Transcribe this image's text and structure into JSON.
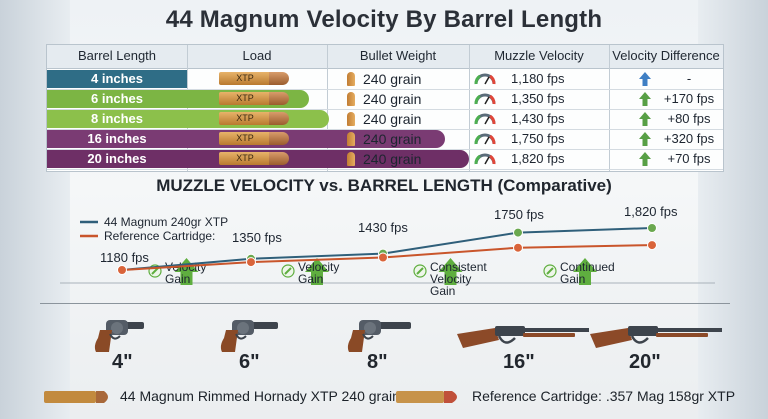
{
  "title": "44 Magnum Velocity By Barrel Length",
  "table": {
    "headers": [
      "Barrel Length",
      "Load",
      "Bullet Weight",
      "Muzzle Velocity",
      "Velocity Difference"
    ],
    "rows": [
      {
        "length": "4 inches",
        "load": "XTP",
        "weight": "240 grain",
        "velocity": "1,180 fps",
        "diff": "-",
        "color": "#2f6d86",
        "arrow": "#3f7fc4"
      },
      {
        "length": "6 inches",
        "load": "XTP",
        "weight": "240 grain",
        "velocity": "1,350 fps",
        "diff": "+170 fps",
        "color": "#7cb544",
        "arrow": "#58a046"
      },
      {
        "length": "8 inches",
        "load": "XTP",
        "weight": "240 grain",
        "velocity": "1,430 fps",
        "diff": "+80 fps",
        "color": "#8cc04b",
        "arrow": "#58a046"
      },
      {
        "length": "16 inches",
        "load": "XTP",
        "weight": "240 grain",
        "velocity": "1,750 fps",
        "diff": "+320 fps",
        "color": "#7a3b73",
        "arrow": "#58a046"
      },
      {
        "length": "20 inches",
        "load": "XTP",
        "weight": "240 grain",
        "velocity": "1,820 fps",
        "diff": "+70 fps",
        "color": "#6e2f66",
        "arrow": "#58a046"
      }
    ]
  },
  "chart_data": {
    "type": "line",
    "title": "MUZZLE VELOCITY vs. BARREL LENGTH (Comparative)",
    "categories": [
      "4\"",
      "6\"",
      "8\"",
      "16\"",
      "20\""
    ],
    "series": [
      {
        "name": "44 Magnum 240gr XTP",
        "color": "#2f5f7a",
        "values": [
          1180,
          1350,
          1430,
          1750,
          1820
        ]
      },
      {
        "name": "Reference Cartridge:",
        "color": "#c9552b",
        "values": [
          1180,
          1300,
          1370,
          1520,
          1560
        ]
      }
    ],
    "point_labels": [
      "1180 fps",
      "1350 fps",
      "1430 fps",
      "1750 fps",
      "1,820 fps"
    ],
    "gain_labels": [
      {
        "after": 0,
        "line1": "Velocity",
        "line2": "Gain",
        "line3": ""
      },
      {
        "after": 1,
        "line1": "Velocity",
        "line2": "Gain",
        "line3": ""
      },
      {
        "after": 2,
        "line1": "Consistent",
        "line2": "Velocity",
        "line3": "Gain"
      },
      {
        "after": 3,
        "line1": "Continued",
        "line2": "Gain",
        "line3": ""
      }
    ],
    "legend": "top-left",
    "grid": false
  },
  "guns": [
    {
      "label": "4\"",
      "kind": "revolver"
    },
    {
      "label": "6\"",
      "kind": "revolver"
    },
    {
      "label": "8\"",
      "kind": "revolver"
    },
    {
      "label": "16\"",
      "kind": "rifle"
    },
    {
      "label": "20\"",
      "kind": "rifle"
    }
  ],
  "footer": {
    "left": "44 Magnum Rimmed Hornady XTP 240 grain",
    "right": "Reference Cartridge: .357 Mag 158gr XTP"
  }
}
